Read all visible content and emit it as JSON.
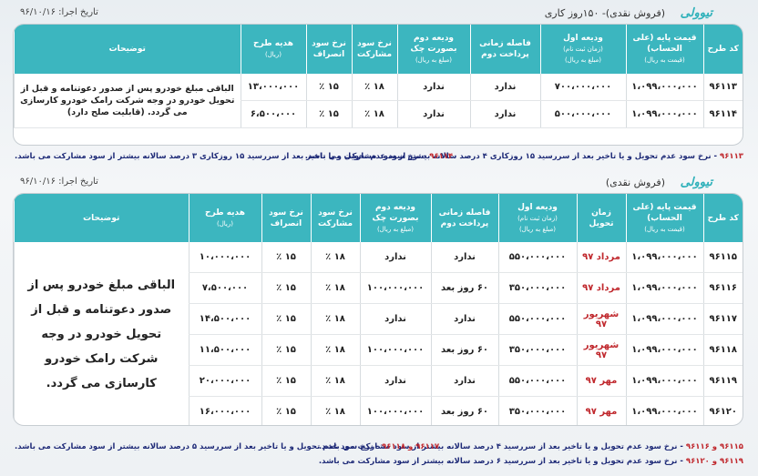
{
  "section1": {
    "brand": "تیوولی",
    "subtitle": "(فروش نقدی)- ۱۵۰روز کاری",
    "date": "تاریخ اجرا: ۹۶/۱۰/۱۶",
    "headers": {
      "code": "کد طرح",
      "base_price": "قیمت پایه (علی الحساب)",
      "base_price_unit": "(قیمت به ریال)",
      "first_deposit": "ودیعه اول",
      "first_deposit_sub": "(زمان ثبت نام)",
      "first_deposit_unit": "(مبلغ به ریال)",
      "interval": "فاصله زمانی پرداخت دوم",
      "second_deposit": "ودیعه دوم بصورت چک",
      "second_deposit_unit": "(مبلغ به ریال)",
      "participation": "نرخ سود مشارکت",
      "cancellation": "نرخ سود انصراف",
      "gift": "هدیه طرح",
      "gift_unit": "(ریال)",
      "description": "توضیحات"
    },
    "rows": [
      {
        "code": "۹۶۱۱۳",
        "base_price": "۱،۰۹۹،۰۰۰،۰۰۰",
        "first_deposit": "۷۰۰،۰۰۰،۰۰۰",
        "interval": "ندارد",
        "second_deposit": "ندارد",
        "participation": "۱۸ ٪",
        "cancellation": "۱۵ ٪",
        "gift": "۱۳،۰۰۰،۰۰۰"
      },
      {
        "code": "۹۶۱۱۴",
        "base_price": "۱،۰۹۹،۰۰۰،۰۰۰",
        "first_deposit": "۵۰۰،۰۰۰،۰۰۰",
        "interval": "ندارد",
        "second_deposit": "ندارد",
        "participation": "۱۸ ٪",
        "cancellation": "۱۵ ٪",
        "gift": "۶،۵۰۰،۰۰۰"
      }
    ],
    "description": "الباقی مبلغ خودرو پس از صدور دعوتنامه و قبل از تحویل خودرو در وجه شرکت رامک خودرو کارسازی می گردد. (قابلیت صلح دارد)",
    "notes": [
      {
        "code": "۹۶۱۱۳",
        "text": " - نرخ سود عدم تحویل و یا تاخیر بعد از سررسید ۱۵ روزکاری ۴ درصد سالانه بیشتر از سود مشارکت می باشد."
      },
      {
        "code": "۹۶۱۱۴",
        "text": " - نرخ سود عدم تحویل و یا تاخیر بعد از سررسید ۱۵ روزکاری ۳ درصد سالانه بیشتر از سود مشارکت می باشد."
      }
    ]
  },
  "section2": {
    "brand": "تیوولی",
    "subtitle": "(فروش نقدی)",
    "date": "تاریخ اجرا: ۹۶/۱۰/۱۶",
    "headers": {
      "code": "کد طرح",
      "base_price": "قیمت پایه (علی الحساب)",
      "base_price_unit": "(قیمت به ریال)",
      "delivery": "زمان تحویل",
      "first_deposit": "ودیعه اول",
      "first_deposit_sub": "(زمان ثبت نام)",
      "first_deposit_unit": "(مبلغ به ریال)",
      "interval": "فاصله زمانی پرداخت دوم",
      "second_deposit": "ودیعه دوم بصورت چک",
      "second_deposit_unit": "(مبلغ به ریال)",
      "participation": "نرخ سود مشارکت",
      "cancellation": "نرخ سود انصراف",
      "gift": "هدیه طرح",
      "gift_unit": "(ریال)",
      "description": "توضیحات"
    },
    "rows": [
      {
        "code": "۹۶۱۱۵",
        "base_price": "۱،۰۹۹،۰۰۰،۰۰۰",
        "delivery": "مرداد ۹۷",
        "first_deposit": "۵۵۰،۰۰۰،۰۰۰",
        "interval": "ندارد",
        "second_deposit": "ندارد",
        "participation": "۱۸ ٪",
        "cancellation": "۱۵ ٪",
        "gift": "۱۰،۰۰۰،۰۰۰"
      },
      {
        "code": "۹۶۱۱۶",
        "base_price": "۱،۰۹۹،۰۰۰،۰۰۰",
        "delivery": "مرداد ۹۷",
        "first_deposit": "۳۵۰،۰۰۰،۰۰۰",
        "interval": "۶۰ روز بعد",
        "second_deposit": "۱۰۰،۰۰۰،۰۰۰",
        "participation": "۱۸ ٪",
        "cancellation": "۱۵ ٪",
        "gift": "۷،۵۰۰،۰۰۰"
      },
      {
        "code": "۹۶۱۱۷",
        "base_price": "۱،۰۹۹،۰۰۰،۰۰۰",
        "delivery": "شهریور ۹۷",
        "first_deposit": "۵۵۰،۰۰۰،۰۰۰",
        "interval": "ندارد",
        "second_deposit": "ندارد",
        "participation": "۱۸ ٪",
        "cancellation": "۱۵ ٪",
        "gift": "۱۴،۵۰۰،۰۰۰"
      },
      {
        "code": "۹۶۱۱۸",
        "base_price": "۱،۰۹۹،۰۰۰،۰۰۰",
        "delivery": "شهریور ۹۷",
        "first_deposit": "۳۵۰،۰۰۰،۰۰۰",
        "interval": "۶۰ روز بعد",
        "second_deposit": "۱۰۰،۰۰۰،۰۰۰",
        "participation": "۱۸ ٪",
        "cancellation": "۱۵ ٪",
        "gift": "۱۱،۵۰۰،۰۰۰"
      },
      {
        "code": "۹۶۱۱۹",
        "base_price": "۱،۰۹۹،۰۰۰،۰۰۰",
        "delivery": "مهر ۹۷",
        "first_deposit": "۵۵۰،۰۰۰،۰۰۰",
        "interval": "ندارد",
        "second_deposit": "ندارد",
        "participation": "۱۸ ٪",
        "cancellation": "۱۵ ٪",
        "gift": "۲۰،۰۰۰،۰۰۰"
      },
      {
        "code": "۹۶۱۲۰",
        "base_price": "۱،۰۹۹،۰۰۰،۰۰۰",
        "delivery": "مهر ۹۷",
        "first_deposit": "۳۵۰،۰۰۰،۰۰۰",
        "interval": "۶۰ روز بعد",
        "second_deposit": "۱۰۰،۰۰۰،۰۰۰",
        "participation": "۱۸ ٪",
        "cancellation": "۱۵ ٪",
        "gift": "۱۶،۰۰۰،۰۰۰"
      }
    ],
    "description": "الباقی مبلغ خودرو پس از صدور دعوتنامه و قبل از تحویل خودرو در وجه شرکت رامک خودرو کارسازی می گردد.",
    "notes": [
      {
        "code": "۹۶۱۱۵ و ۹۶۱۱۶",
        "text": " - نرخ سود عدم تحویل و یا تاخیر بعد از سررسید ۴ درصد سالانه بیشتر از سود مشارکت می باشد."
      },
      {
        "code": "۹۶۱۱۷ و ۹۶۱۱۸",
        "text": " - نرخ سود عدم تحویل و یا تاخیر بعد از سررسید ۵ درصد سالانه بیشتر از سود مشارکت می باشد."
      },
      {
        "code": "۹۶۱۱۹ و ۹۶۱۲۰",
        "text": " - نرخ سود عدم تحویل و یا تاخیر بعد از سررسید ۶ درصد سالانه بیشتر از سود مشارکت می باشد."
      }
    ]
  }
}
